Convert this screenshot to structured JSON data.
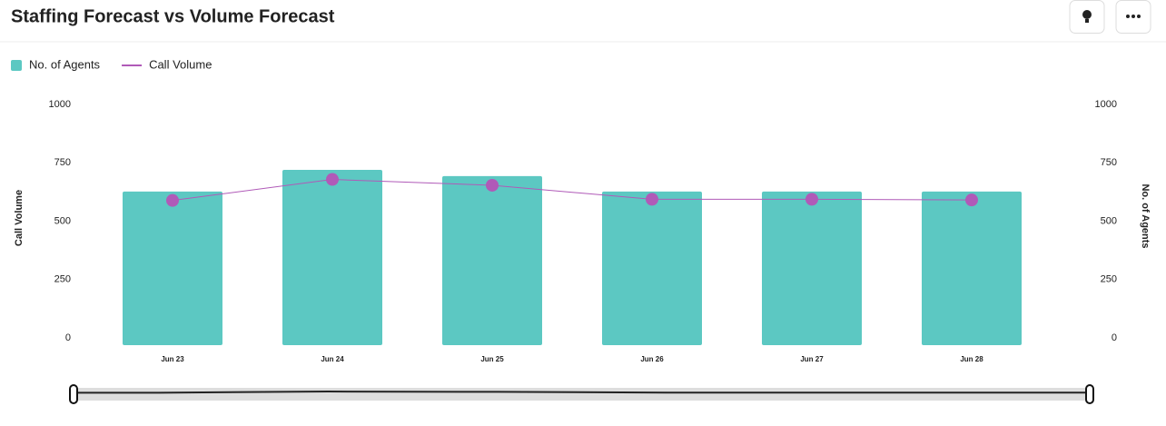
{
  "chart_data": {
    "type": "bar_line",
    "title": "Staffing  Forecast vs Volume Forecast",
    "y_label": "Call Volume",
    "y2_label": "No. of Agents",
    "categories": [
      "Jun 23",
      "Jun 24",
      "Jun 25",
      "Jun 26",
      "Jun 27",
      "Jun 28"
    ],
    "series": [
      {
        "name": "No. of Agents",
        "type": "bar",
        "axis": "y2",
        "color": "#5cc8c2",
        "values": [
          658,
          751,
          724,
          658,
          658,
          658
        ]
      },
      {
        "name": "Call Volume",
        "type": "line",
        "color": "#b05ab8",
        "values": [
          620,
          710,
          685,
          625,
          625,
          622
        ]
      }
    ],
    "ylim": [
      0,
      1000
    ],
    "yticks": [
      0,
      250,
      500,
      750,
      1000
    ],
    "y2lim": [
      0,
      1000
    ],
    "y2ticks": [
      0,
      250,
      500,
      750,
      1000
    ],
    "legend": "top-left"
  }
}
